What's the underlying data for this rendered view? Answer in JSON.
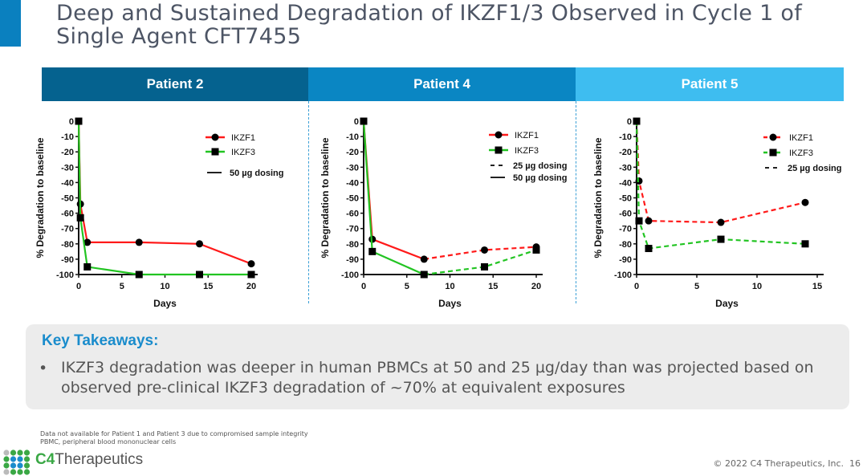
{
  "title": "Deep and Sustained Degradation of IKZF1/3 Observed in Cycle 1 of Single Agent CFT7455",
  "colors": {
    "accent": "#0a80bf",
    "band1": "#05628f",
    "band2": "#0a86c3",
    "band3": "#3ebdf0",
    "ikzf1": "#ff1a1a",
    "ikzf3": "#22c422",
    "takeaway_title": "#1a8ccc"
  },
  "chart_data": [
    {
      "type": "line",
      "title": "Patient 2",
      "xlabel": "Days",
      "ylabel": "% Degradation to baseline",
      "xlim": [
        0,
        20
      ],
      "ylim": [
        -100,
        0
      ],
      "xticks": [
        0,
        5,
        10,
        15,
        20
      ],
      "yticks": [
        0,
        -10,
        -20,
        -30,
        -40,
        -50,
        -60,
        -70,
        -80,
        -90,
        -100
      ],
      "legend": {
        "position": "top-right",
        "dosing": [
          "50 µg dosing"
        ]
      },
      "series": [
        {
          "name": "IKZF1",
          "marker": "circle",
          "segments": [
            {
              "dosing": "50 µg dosing",
              "x": [
                0,
                0.2,
                1,
                7,
                14,
                20
              ],
              "y": [
                0,
                -54,
                -79,
                -79,
                -80,
                -93
              ]
            }
          ]
        },
        {
          "name": "IKZF3",
          "marker": "square",
          "segments": [
            {
              "dosing": "50 µg dosing",
              "x": [
                0,
                0.2,
                1,
                7,
                14,
                20
              ],
              "y": [
                0,
                -63,
                -95,
                -100,
                -100,
                -100
              ]
            }
          ]
        }
      ]
    },
    {
      "type": "line",
      "title": "Patient 4",
      "xlabel": "Days",
      "ylabel": "% Degradation to baseline",
      "xlim": [
        0,
        20
      ],
      "ylim": [
        -100,
        0
      ],
      "xticks": [
        0,
        5,
        10,
        15,
        20
      ],
      "yticks": [
        0,
        -10,
        -20,
        -30,
        -40,
        -50,
        -60,
        -70,
        -80,
        -90,
        -100
      ],
      "legend": {
        "position": "top-right",
        "dosing": [
          "25 µg dosing",
          "50 µg dosing"
        ]
      },
      "series": [
        {
          "name": "IKZF1",
          "marker": "circle",
          "segments": [
            {
              "dosing": "50 µg dosing",
              "x": [
                0,
                1,
                7
              ],
              "y": [
                0,
                -77,
                -90
              ]
            },
            {
              "dosing": "25 µg dosing",
              "x": [
                7,
                14,
                20
              ],
              "y": [
                -90,
                -84,
                -82
              ]
            }
          ]
        },
        {
          "name": "IKZF3",
          "marker": "square",
          "segments": [
            {
              "dosing": "50 µg dosing",
              "x": [
                0,
                1,
                7
              ],
              "y": [
                0,
                -85,
                -100
              ]
            },
            {
              "dosing": "25 µg dosing",
              "x": [
                7,
                14,
                20
              ],
              "y": [
                -100,
                -95,
                -84
              ]
            }
          ]
        }
      ]
    },
    {
      "type": "line",
      "title": "Patient 5",
      "xlabel": "Days",
      "ylabel": "% Degradation to baseline",
      "xlim": [
        0,
        15
      ],
      "ylim": [
        -100,
        0
      ],
      "xticks": [
        0,
        5,
        10,
        15
      ],
      "yticks": [
        0,
        -10,
        -20,
        -30,
        -40,
        -50,
        -60,
        -70,
        -80,
        -90,
        -100
      ],
      "legend": {
        "position": "top-right",
        "dosing": [
          "25 µg dosing"
        ]
      },
      "series": [
        {
          "name": "IKZF1",
          "marker": "circle",
          "segments": [
            {
              "dosing": "25 µg dosing",
              "x": [
                0,
                0.2,
                1,
                7,
                14
              ],
              "y": [
                0,
                -39,
                -65,
                -66,
                -53
              ]
            }
          ]
        },
        {
          "name": "IKZF3",
          "marker": "square",
          "segments": [
            {
              "dosing": "25 µg dosing",
              "x": [
                0,
                0.2,
                1,
                7,
                14
              ],
              "y": [
                0,
                -65,
                -83,
                -77,
                -80
              ]
            }
          ]
        }
      ]
    }
  ],
  "takeaways": {
    "title": "Key Takeaways:",
    "bullet": "•",
    "items": [
      "IKZF3 degradation was deeper in human PBMCs at 50 and 25 µg/day than was projected based on observed pre-clinical IKZF3 degradation of ~70% at equivalent exposures"
    ]
  },
  "footnotes": [
    "Data not available for Patient 1 and Patient 3 due to compromised sample integrity",
    "PBMC, peripheral blood mononuclear cells"
  ],
  "logo": {
    "c4": "C4",
    "name": "Therapeutics"
  },
  "copyright": "©  2022 C4 Therapeutics, Inc.",
  "page_number": "16"
}
